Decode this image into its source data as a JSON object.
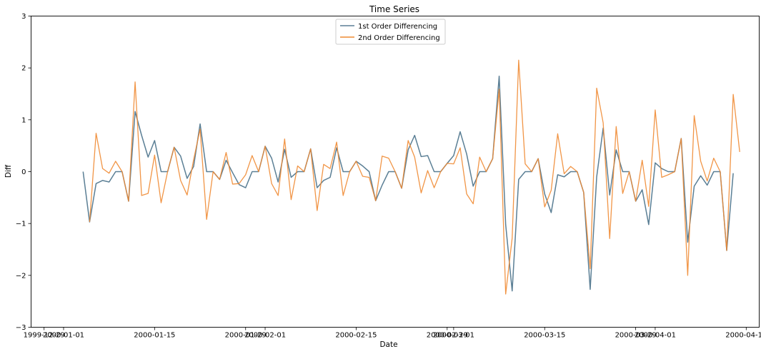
{
  "chart_data": {
    "type": "line",
    "title": "Time Series",
    "xlabel": "Date",
    "ylabel": "Diff",
    "ylim": [
      -3,
      3
    ],
    "yticks": [
      "−3",
      "−2",
      "−1",
      "0",
      "1",
      "2",
      "3"
    ],
    "xticks": [
      "1999-12-29",
      "2000-01-01",
      "2000-01-15",
      "2000-01-29",
      "2000-02-01",
      "2000-02-15",
      "2000-02-29",
      "2000-03-01",
      "2000-03-15",
      "2000-03-29",
      "2000-04-01",
      "2000-04-15"
    ],
    "xlim": [
      "1999-12-27",
      "2000-04-17"
    ],
    "legend_position": "top-center",
    "grid": false,
    "series": [
      {
        "name": "1st Order Differencing",
        "color": "#5b7f95",
        "start": "2000-01-04",
        "values": [
          0.0,
          -0.97,
          -0.23,
          -0.17,
          -0.2,
          0.0,
          0.0,
          -0.57,
          1.16,
          0.7,
          0.28,
          0.6,
          0.0,
          0.0,
          0.47,
          0.3,
          -0.13,
          0.1,
          0.92,
          0.0,
          0.0,
          -0.15,
          0.22,
          -0.02,
          -0.25,
          -0.31,
          0.0,
          0.0,
          0.49,
          0.26,
          -0.2,
          0.43,
          -0.11,
          0.0,
          0.0,
          0.44,
          -0.31,
          -0.17,
          -0.11,
          0.46,
          0.0,
          0.0,
          0.2,
          0.11,
          0.0,
          -0.56,
          -0.26,
          0.0,
          0.0,
          -0.32,
          0.42,
          0.7,
          0.29,
          0.31,
          0.0,
          0.0,
          0.16,
          0.31,
          0.77,
          0.34,
          -0.28,
          0.0,
          0.0,
          0.25,
          1.84,
          -1.02,
          -2.3,
          -0.15,
          0.0,
          0.0,
          0.25,
          -0.43,
          -0.79,
          -0.06,
          -0.1,
          0.0,
          0.0,
          -0.4,
          -2.27,
          -0.1,
          0.84,
          -0.45,
          0.42,
          0.0,
          0.0,
          -0.57,
          -0.35,
          -1.02,
          0.17,
          0.06,
          0.0,
          0.0,
          0.64,
          -1.36,
          -0.28,
          -0.08,
          -0.26,
          0.0,
          0.0,
          -1.52,
          -0.03
        ]
      },
      {
        "name": "2nd Order Differencing",
        "color": "#ef8a32",
        "start": "2000-01-05",
        "values": [
          -0.97,
          0.74,
          0.06,
          -0.03,
          0.2,
          0.0,
          -0.57,
          1.73,
          -0.46,
          -0.42,
          0.32,
          -0.6,
          0.0,
          0.47,
          -0.17,
          -0.45,
          0.23,
          0.82,
          -0.92,
          0.0,
          -0.15,
          0.37,
          -0.24,
          -0.23,
          -0.06,
          0.31,
          0.0,
          0.49,
          -0.23,
          -0.46,
          0.63,
          -0.54,
          0.11,
          0.0,
          0.44,
          -0.75,
          0.14,
          0.06,
          0.57,
          -0.46,
          0.0,
          0.2,
          -0.09,
          -0.11,
          -0.56,
          0.3,
          0.26,
          0.0,
          -0.32,
          0.6,
          0.28,
          -0.41,
          0.02,
          -0.31,
          0.0,
          0.16,
          0.15,
          0.46,
          -0.43,
          -0.62,
          0.28,
          0.0,
          0.25,
          1.59,
          -2.36,
          -1.28,
          2.15,
          0.15,
          0.0,
          0.25,
          -0.68,
          -0.36,
          0.73,
          -0.04,
          0.1,
          0.0,
          -0.4,
          -1.87,
          1.61,
          0.94,
          -1.29,
          0.87,
          -0.42,
          0.0,
          -0.57,
          0.22,
          -0.67,
          1.19,
          -0.11,
          -0.06,
          0.0,
          0.64,
          -2.0,
          1.08,
          0.2,
          -0.18,
          0.26,
          0.0,
          -1.52,
          1.49,
          0.38
        ]
      }
    ]
  }
}
